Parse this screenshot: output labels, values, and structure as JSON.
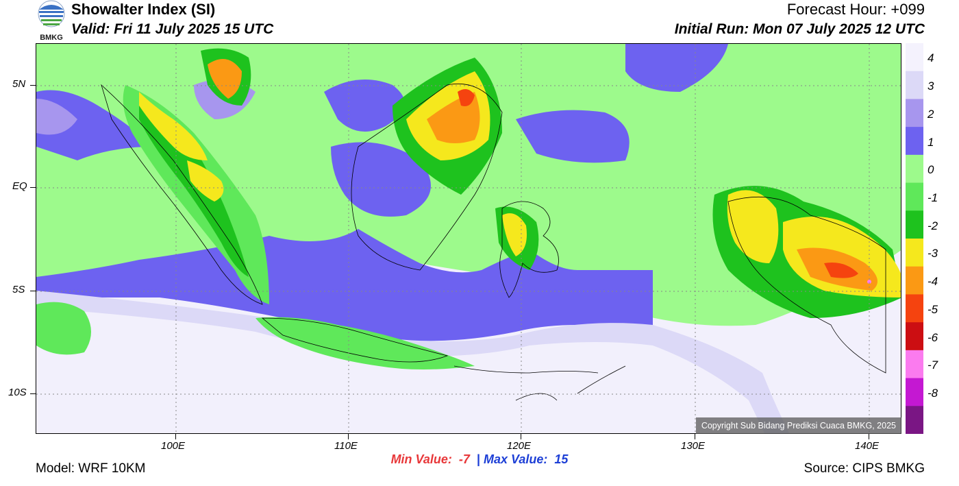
{
  "header": {
    "title": "Showalter Index (SI)",
    "valid": "Valid: Fri 11 July 2025 15 UTC",
    "forecast_hour": "Forecast Hour: +099",
    "initial_run": "Initial Run: Mon 07 July 2025 12 UTC",
    "logo_text": "BMKG"
  },
  "map": {
    "lat_labels": [
      "5N",
      "EQ",
      "5S",
      "10S"
    ],
    "lon_labels": [
      "100E",
      "110E",
      "120E",
      "130E",
      "140E"
    ],
    "copyright": "Copyright Sub Bidang Prediksi Cuaca BMKG, 2025"
  },
  "colorbar": {
    "labels": [
      "4",
      "3",
      "2",
      "1",
      "0",
      "-1",
      "-2",
      "-3",
      "-4",
      "-5",
      "-6",
      "-7",
      "-8"
    ],
    "colors": [
      "#f4f2fd",
      "#dcd9f7",
      "#a796ee",
      "#6d62f0",
      "#9dfa8c",
      "#5fe85a",
      "#1ec21e",
      "#f5e81d",
      "#fb9914",
      "#f5430f",
      "#cc0e12",
      "#fb7bef",
      "#c418d2",
      "#7a1684"
    ]
  },
  "footer": {
    "model": "Model: WRF 10KM",
    "source": "Source: CIPS BMKG",
    "min_label": "Min Value:",
    "min_value": "-7",
    "separator": "|",
    "max_label": "Max Value:",
    "max_value": "15"
  }
}
